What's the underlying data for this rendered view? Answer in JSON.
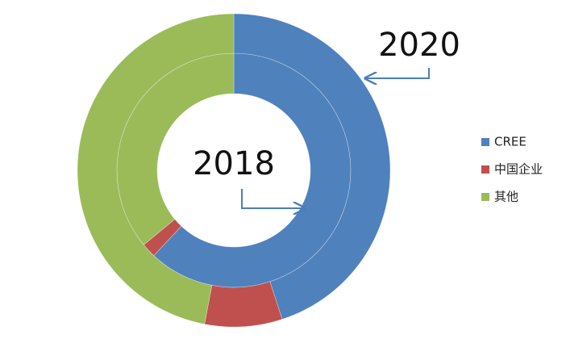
{
  "chart_data": {
    "type": "doughnut",
    "categories": [
      "CREE",
      "中国企业",
      "其他"
    ],
    "colors": [
      "#4f81bd",
      "#c0504d",
      "#9bbb59"
    ],
    "series": [
      {
        "name": "2018",
        "values": [
          62,
          2,
          36
        ]
      },
      {
        "name": "2020",
        "values": [
          45,
          8,
          47
        ]
      }
    ],
    "legend": "right"
  }
}
